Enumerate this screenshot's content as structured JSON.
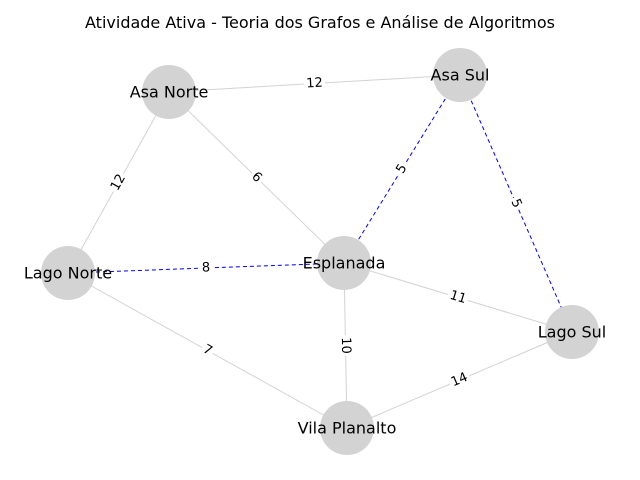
{
  "title": "Atividade Ativa - Teoria dos Grafos e Análise de Algoritmos",
  "colors": {
    "node_fill": "#d3d3d3",
    "edge_default": "#d3d3d3",
    "edge_highlight": "#0000ff",
    "label_background": "#ffffff",
    "text": "#000000"
  },
  "nodes": [
    {
      "id": "asa-norte",
      "label": "Asa Norte"
    },
    {
      "id": "asa-sul",
      "label": "Asa Sul"
    },
    {
      "id": "lago-norte",
      "label": "Lago Norte"
    },
    {
      "id": "esplanada",
      "label": "Esplanada"
    },
    {
      "id": "lago-sul",
      "label": "Lago Sul"
    },
    {
      "id": "vila-planalto",
      "label": "Vila Planalto"
    }
  ],
  "edges": [
    {
      "source": "asa-norte",
      "target": "asa-sul",
      "weight": "12",
      "highlighted": false
    },
    {
      "source": "asa-norte",
      "target": "lago-norte",
      "weight": "12",
      "highlighted": false
    },
    {
      "source": "asa-norte",
      "target": "esplanada",
      "weight": "6",
      "highlighted": false
    },
    {
      "source": "asa-sul",
      "target": "esplanada",
      "weight": "5",
      "highlighted": true
    },
    {
      "source": "asa-sul",
      "target": "lago-sul",
      "weight": "5",
      "highlighted": true
    },
    {
      "source": "lago-norte",
      "target": "esplanada",
      "weight": "8",
      "highlighted": true
    },
    {
      "source": "lago-norte",
      "target": "vila-planalto",
      "weight": "7",
      "highlighted": false
    },
    {
      "source": "esplanada",
      "target": "lago-sul",
      "weight": "11",
      "highlighted": false
    },
    {
      "source": "esplanada",
      "target": "vila-planalto",
      "weight": "10",
      "highlighted": false
    },
    {
      "source": "vila-planalto",
      "target": "lago-sul",
      "weight": "14",
      "highlighted": false
    }
  ]
}
